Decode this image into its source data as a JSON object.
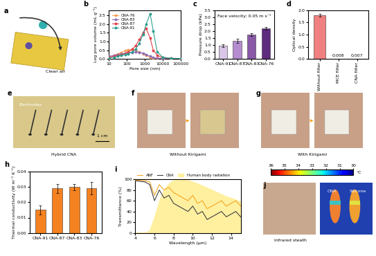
{
  "chart_data": [
    {
      "panel": "b",
      "type": "line",
      "log": "x",
      "x_label": "Pore size (nm)",
      "y_label": "Log pore volume (mL g⁻¹)",
      "x": [
        10,
        20,
        30,
        50,
        80,
        120,
        200,
        300,
        500,
        800,
        1200,
        2000,
        3000,
        5000,
        10000,
        30000,
        100000
      ],
      "series": [
        {
          "name": "CNA-76",
          "color": "#f5a05a",
          "marker": "o",
          "line_style": "solid",
          "values": [
            0.1,
            0.2,
            0.28,
            0.38,
            0.48,
            0.53,
            0.55,
            0.5,
            0.4,
            0.3,
            0.2,
            0.1,
            0.05,
            0.03,
            0.02,
            0.01,
            0.01
          ]
        },
        {
          "name": "CNA-83",
          "color": "#8e6bb5",
          "marker": "o",
          "line_style": "solid",
          "values": [
            0.15,
            0.2,
            0.25,
            0.3,
            0.33,
            0.36,
            0.38,
            0.4,
            0.38,
            0.33,
            0.25,
            0.15,
            0.08,
            0.04,
            0.02,
            0.01,
            0.01
          ]
        },
        {
          "name": "CNA-87",
          "color": "#e0404a",
          "marker": "o",
          "line_style": "solid",
          "values": [
            0.1,
            0.15,
            0.2,
            0.25,
            0.3,
            0.4,
            0.55,
            0.75,
            1.1,
            1.5,
            1.75,
            1.2,
            0.5,
            0.2,
            0.08,
            0.03,
            0.02
          ]
        },
        {
          "name": "CNA-91",
          "color": "#2a9d8f",
          "marker": "o",
          "line_style": "solid",
          "values": [
            0.05,
            0.1,
            0.15,
            0.2,
            0.25,
            0.3,
            0.4,
            0.55,
            0.9,
            1.4,
            2.0,
            2.6,
            1.6,
            0.4,
            0.1,
            0.03,
            0.02
          ]
        }
      ],
      "xlim": [
        10,
        100000
      ],
      "xticks": [
        10,
        100,
        1000,
        10000,
        100000
      ],
      "ylim": [
        0,
        2.8
      ],
      "yticks": [
        {
          "value": 0,
          "label": "0.0"
        },
        {
          "value": 0.5,
          "label": "0.5"
        },
        {
          "value": 1,
          "label": "1.0"
        },
        {
          "value": 1.5,
          "label": "1.5"
        },
        {
          "value": 2,
          "label": "2.0"
        },
        {
          "value": 2.5,
          "label": "2.5"
        }
      ],
      "legend": "upper left"
    },
    {
      "panel": "c",
      "type": "bar",
      "y_label": "Pressure drop (kPa)",
      "annotation": "Face velocity: 0.05 m s⁻¹",
      "categories": [
        "CNA-91",
        "CNA-87",
        "CNA-83",
        "CNA-76"
      ],
      "values": [
        0.95,
        1.3,
        1.75,
        2.2
      ],
      "errors": [
        0.1,
        0.15,
        0.12,
        0.12
      ],
      "colors": [
        "#d9c6e6",
        "#b48ccf",
        "#8a5aa8",
        "#5e2c7e"
      ],
      "ylim": [
        0,
        3.5
      ],
      "yticks": [
        {
          "value": 0,
          "label": "0.0"
        },
        {
          "value": 0.5,
          "label": "0.5"
        },
        {
          "value": 1,
          "label": "1.0"
        },
        {
          "value": 1.5,
          "label": "1.5"
        },
        {
          "value": 2,
          "label": "2.0"
        },
        {
          "value": 2.5,
          "label": "2.5"
        },
        {
          "value": 3,
          "label": "3.0"
        },
        {
          "value": 3.5,
          "label": "3.5"
        }
      ]
    },
    {
      "panel": "d",
      "type": "bar",
      "y_label": "Optical density",
      "categories": [
        "Without filter",
        "MCE filter",
        "CNA filter"
      ],
      "values": [
        1.8,
        0.008,
        0.007
      ],
      "errors": [
        0.05,
        0,
        0
      ],
      "value_labels": [
        null,
        "0.008",
        "0.007"
      ],
      "data_labels": true,
      "color": "#f08080",
      "ylim": [
        0,
        2.0
      ],
      "yticks": [
        {
          "value": 0,
          "label": "0.0"
        },
        {
          "value": 0.5,
          "label": "0.5"
        },
        {
          "value": 1,
          "label": "1.0"
        },
        {
          "value": 1.5,
          "label": "1.5"
        },
        {
          "value": 2,
          "label": "2.0"
        }
      ]
    },
    {
      "panel": "h",
      "type": "bar",
      "y_label": "Thermal conductivity (W m⁻¹ K⁻¹)",
      "categories": [
        "CNA-91",
        "CNA-87",
        "CNA-83",
        "CNA-76"
      ],
      "values": [
        0.015,
        0.029,
        0.03,
        0.029
      ],
      "errors": [
        0.003,
        0.003,
        0.002,
        0.004
      ],
      "color": "#f58220",
      "ylim": [
        0,
        0.04
      ],
      "yticks": [
        {
          "value": 0,
          "label": "0.00"
        },
        {
          "value": 0.01,
          "label": "0.01"
        },
        {
          "value": 0.02,
          "label": "0.02"
        },
        {
          "value": 0.03,
          "label": "0.03"
        },
        {
          "value": 0.04,
          "label": "0.04"
        }
      ]
    },
    {
      "panel": "i",
      "type": "line",
      "x_label": "Wavelength (μm)",
      "y_label": "Transmittance (%)",
      "x": [
        4,
        4.5,
        5,
        5.5,
        6,
        6.5,
        7,
        7.5,
        8,
        8.5,
        9,
        9.5,
        10,
        10.5,
        11,
        11.5,
        12,
        12.5,
        13,
        13.5,
        14,
        14.5,
        15
      ],
      "series": [
        {
          "name": "ANF",
          "color": "#f5a623",
          "type": "line",
          "line_style": "solid",
          "values": [
            98,
            98,
            97,
            95,
            70,
            90,
            80,
            85,
            75,
            70,
            65,
            60,
            70,
            55,
            60,
            45,
            50,
            55,
            60,
            50,
            55,
            60,
            50
          ]
        },
        {
          "name": "CNA",
          "color": "#404040",
          "type": "line",
          "line_style": "solid",
          "values": [
            97,
            96,
            95,
            90,
            60,
            80,
            65,
            70,
            55,
            50,
            45,
            40,
            50,
            35,
            40,
            25,
            30,
            35,
            40,
            30,
            35,
            40,
            30
          ]
        },
        {
          "name": "Human body radiation",
          "color": "#fff0a0",
          "type": "area",
          "values": [
            0,
            0,
            0,
            5,
            30,
            60,
            80,
            92,
            98,
            100,
            100,
            98,
            95,
            92,
            88,
            84,
            80,
            76,
            72,
            68,
            65,
            62,
            58
          ]
        }
      ],
      "xlim": [
        4,
        15
      ],
      "xticks": [
        4,
        6,
        8,
        10,
        12,
        14
      ],
      "ylim": [
        0,
        100
      ],
      "yticks": [
        0,
        20,
        40,
        60,
        80,
        100
      ],
      "legend": "lower left"
    }
  ],
  "images": [
    {
      "panel": "a",
      "caption": "Clean air",
      "labels": []
    },
    {
      "panel": "e",
      "caption": "Hybrid CNA",
      "labels": [
        "Electrodes",
        "1 cm"
      ]
    },
    {
      "panel": "f",
      "caption": "Without Kirigami",
      "labels": []
    },
    {
      "panel": "g",
      "caption": "With Kirigami",
      "labels": []
    },
    {
      "panel": "j",
      "caption": "Infrared steath",
      "labels": [
        "CNA",
        "Silicone"
      ],
      "colorbar": {
        "range": [
          30,
          36
        ],
        "ticks": [
          36,
          35,
          34,
          33,
          32,
          31,
          30
        ],
        "label": "°C"
      }
    }
  ]
}
